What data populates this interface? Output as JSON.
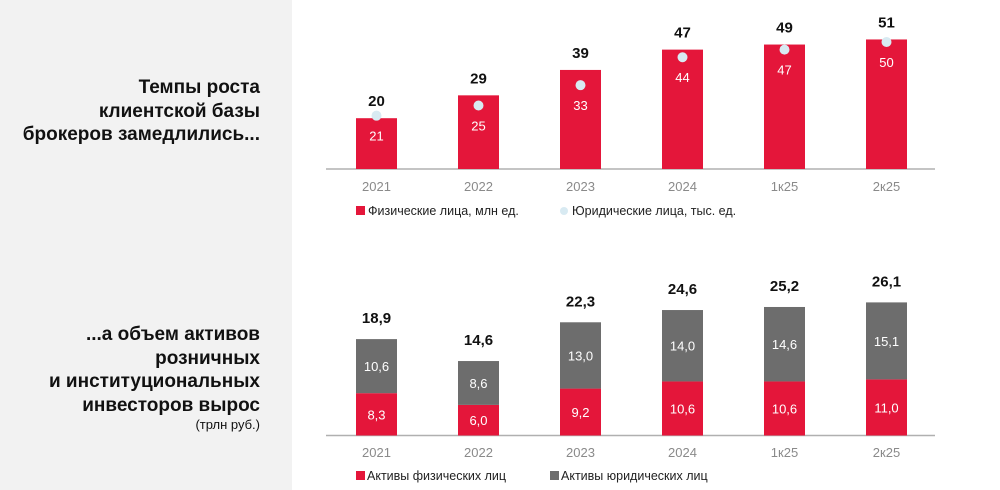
{
  "headings": {
    "top": [
      "Темпы роста",
      "клиентской базы",
      "брокеров замедлились..."
    ],
    "bottom": [
      "...а объем активов",
      "розничных",
      "и институциональных",
      "инвесторов вырос"
    ],
    "bottom_unit": "(трлн руб.)"
  },
  "colors": {
    "red": "#e4163a",
    "gray": "#6d6d6d",
    "dot": "#d8eaf2",
    "axis": "#b0b0b0"
  },
  "chart_data": [
    {
      "type": "bar",
      "categories": [
        "2021",
        "2022",
        "2023",
        "2024",
        "1к25",
        "2к25"
      ],
      "series": [
        {
          "name": "Физические лица, млн ед.",
          "values": [
            20,
            29,
            39,
            47,
            49,
            51
          ],
          "marker": "bar"
        },
        {
          "name": "Юридические лица, тыс. ед.",
          "values": [
            21,
            25,
            33,
            44,
            47,
            50
          ],
          "marker": "dot"
        }
      ],
      "legend": "bottom"
    },
    {
      "type": "bar",
      "stacked": true,
      "categories": [
        "2021",
        "2022",
        "2023",
        "2024",
        "1к25",
        "2к25"
      ],
      "totals": [
        "18,9",
        "14,6",
        "22,3",
        "24,6",
        "25,2",
        "26,1"
      ],
      "series": [
        {
          "name": "Активы физических лиц",
          "values": [
            8.3,
            6.0,
            9.2,
            10.6,
            10.6,
            11.0
          ],
          "labels": [
            "8,3",
            "6,0",
            "9,2",
            "10,6",
            "10,6",
            "11,0"
          ]
        },
        {
          "name": "Активы юридических лиц",
          "values": [
            10.6,
            8.6,
            13.0,
            14.0,
            14.6,
            15.1
          ],
          "labels": [
            "10,6",
            "8,6",
            "13,0",
            "14,0",
            "14,6",
            "15,1"
          ]
        }
      ],
      "legend": "bottom"
    }
  ]
}
